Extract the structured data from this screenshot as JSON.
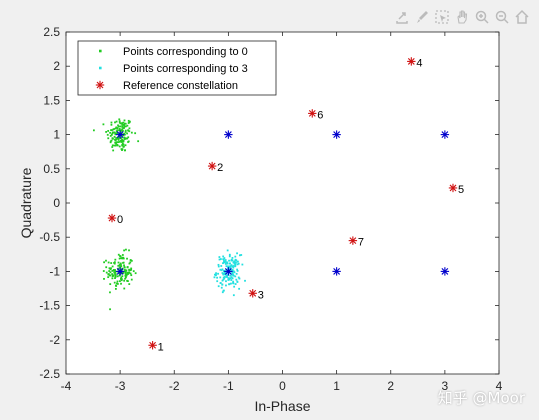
{
  "toolbar": {
    "icons": [
      "share-icon",
      "brush-icon",
      "select-icon",
      "pan-icon",
      "zoom-in-icon",
      "zoom-out-icon",
      "home-icon"
    ]
  },
  "watermark": {
    "text": "知乎 @Moor"
  },
  "colors": {
    "green": "#22cc22",
    "cyan": "#22e0e0",
    "red": "#d01010",
    "blue": "#0000cc",
    "axis": "#262626",
    "background": "#ffffff",
    "figure": "#f0f0f0"
  },
  "chart_data": {
    "type": "scatter",
    "xlabel": "In-Phase",
    "ylabel": "Quadrature",
    "xlim": [
      -4,
      4
    ],
    "ylim": [
      -2.5,
      2.5
    ],
    "xticks": [
      -4,
      -3,
      -2,
      -1,
      0,
      1,
      2,
      3,
      4
    ],
    "xtick_labels": [
      "-4",
      "-3",
      "-2",
      "-1",
      "0",
      "1",
      "2",
      "3",
      "4"
    ],
    "yticks": [
      -2.5,
      -2,
      -1.5,
      -1,
      -0.5,
      0,
      0.5,
      1,
      1.5,
      2,
      2.5
    ],
    "ytick_labels": [
      "-2.5",
      "-2",
      "-1.5",
      "-1",
      "-0.5",
      "0",
      "0.5",
      "1",
      "1.5",
      "2",
      "2.5"
    ],
    "grid": false,
    "legend_position": "top-left",
    "legend": [
      {
        "label": "Points corresponding to 0",
        "marker": "dot",
        "color": "#22cc22"
      },
      {
        "label": "Points corresponding to 3",
        "marker": "dot",
        "color": "#22e0e0"
      },
      {
        "label": "Reference constellation",
        "marker": "star",
        "color": "#d01010"
      }
    ],
    "clusters": [
      {
        "name": "Points corresponding to 0",
        "color": "#22cc22",
        "centers": [
          [
            -3,
            1
          ],
          [
            -3,
            -1
          ]
        ],
        "spread": 0.12,
        "count_per_center": 150
      },
      {
        "name": "Points corresponding to 3",
        "color": "#22e0e0",
        "centers": [
          [
            -1,
            -1
          ]
        ],
        "spread": 0.11,
        "count_per_center": 160
      }
    ],
    "ideal_points": {
      "color": "#0000cc",
      "marker": "star",
      "points": [
        [
          -3,
          1
        ],
        [
          -1,
          1
        ],
        [
          1,
          1
        ],
        [
          3,
          1
        ],
        [
          -3,
          -1
        ],
        [
          -1,
          -1
        ],
        [
          1,
          -1
        ],
        [
          3,
          -1
        ]
      ]
    },
    "reference_constellation": [
      {
        "label": "0",
        "x": -3.15,
        "y": -0.22
      },
      {
        "label": "1",
        "x": -2.4,
        "y": -2.08
      },
      {
        "label": "2",
        "x": -1.3,
        "y": 0.54
      },
      {
        "label": "3",
        "x": -0.55,
        "y": -1.32
      },
      {
        "label": "4",
        "x": 2.38,
        "y": 2.07
      },
      {
        "label": "5",
        "x": 3.15,
        "y": 0.22
      },
      {
        "label": "6",
        "x": 0.55,
        "y": 1.31
      },
      {
        "label": "7",
        "x": 1.3,
        "y": -0.55
      }
    ]
  }
}
